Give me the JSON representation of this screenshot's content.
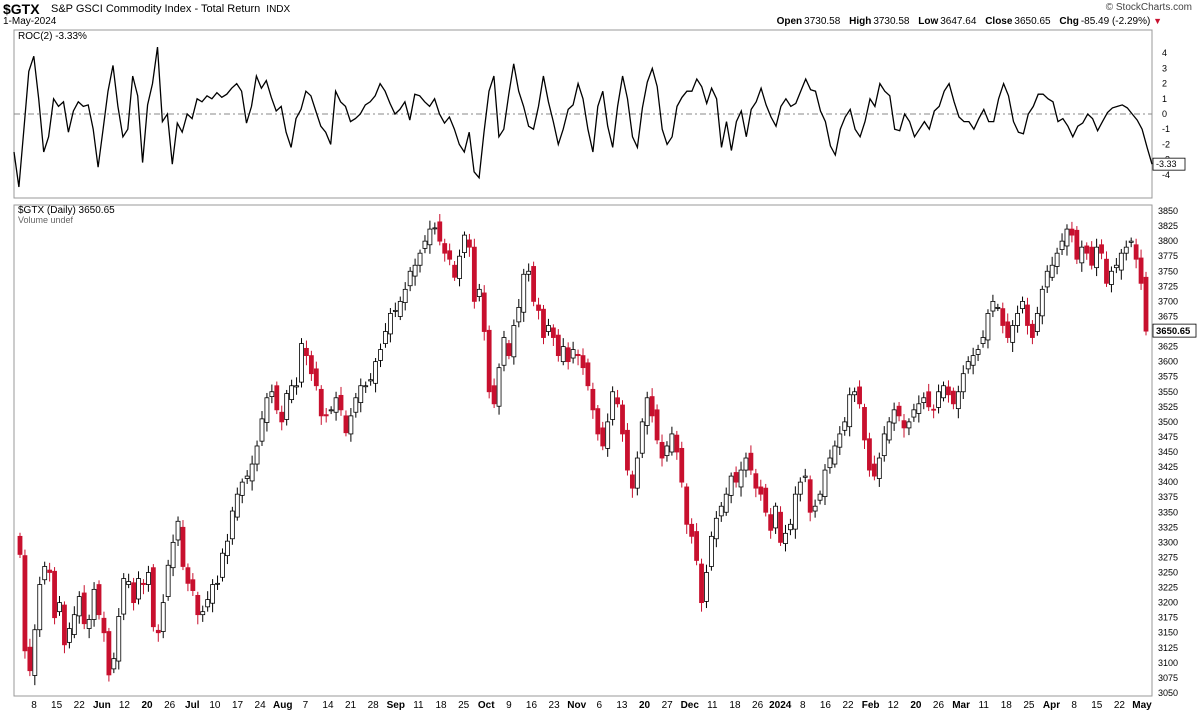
{
  "header": {
    "symbol": "$GTX",
    "name": "S&P GSCI Commodity Index - Total Return",
    "exchange": "INDX",
    "date": "1-May-2024",
    "brand": "© StockCharts.com",
    "open_label": "Open",
    "open": "3730.58",
    "high_label": "High",
    "high": "3730.58",
    "low_label": "Low",
    "low": "3647.64",
    "close_label": "Close",
    "close": "3650.65",
    "chg_label": "Chg",
    "chg": "-85.49 (-2.29%)",
    "chg_icon": "down-triangle-icon"
  },
  "colors": {
    "up": "#000000",
    "down": "#c8102e",
    "grid": "#e6e6e6",
    "roc_line": "#000000"
  },
  "chart_data": [
    {
      "type": "line",
      "legend": "ROC(2) -3.33%",
      "ylim": [
        -5,
        5
      ],
      "yticks": [
        -4,
        -3,
        -2,
        -1,
        0,
        1,
        2,
        3,
        4
      ],
      "last_value_label": "-3.33",
      "series": [
        {
          "name": "ROC(2)",
          "values": [
            -2.5,
            -4.8,
            -1,
            2.8,
            3.8,
            1,
            -2.5,
            -1.5,
            1,
            0.5,
            0.8,
            -1.2,
            0.2,
            0.8,
            0.5,
            0.6,
            -1,
            -3.5,
            -1,
            1.5,
            3.2,
            0.5,
            -1.5,
            -1,
            2.5,
            1.2,
            -3.2,
            0.6,
            2,
            4.4,
            -0.5,
            0,
            -3.3,
            -0.6,
            -1.2,
            0,
            -0.3,
            1,
            0.8,
            1.2,
            1,
            1.4,
            1.1,
            1.3,
            1.7,
            2,
            1.5,
            -0.6,
            0.5,
            2.5,
            1.7,
            2.2,
            1.1,
            0.2,
            0.5,
            -1.2,
            -2.2,
            -0.3,
            0.3,
            1.5,
            1.2,
            0.2,
            -0.8,
            -1.2,
            -2,
            1.5,
            0.8,
            0.5,
            -0.5,
            -0.3,
            0,
            0.6,
            0.8,
            1.2,
            2,
            1.5,
            0.7,
            0,
            0.3,
            0.8,
            -0.4,
            1.3,
            1.2,
            0.8,
            0.5,
            1,
            0,
            -0.6,
            -0.2,
            -1,
            -2,
            -2.5,
            -1.2,
            -3.8,
            -4.2,
            -1.2,
            1.5,
            2.5,
            -1.5,
            -1,
            1.3,
            3.3,
            1.5,
            0.5,
            -0.8,
            -1,
            0.5,
            2.5,
            0.8,
            -0.5,
            -2,
            -1,
            0.3,
            0.6,
            2,
            1,
            -1,
            -2.5,
            0.5,
            1.5,
            -0.8,
            -2.2,
            0.5,
            2.5,
            1,
            -1.5,
            -2.2,
            0.4,
            2.1,
            3,
            1.8,
            -1,
            -2,
            -1.5,
            0.5,
            1.1,
            1.5,
            1.5,
            2.3,
            1.8,
            0.7,
            1.7,
            1,
            -2.2,
            -0.5,
            -2.4,
            -0.5,
            0.2,
            -1.5,
            0.3,
            0.8,
            1.7,
            0.6,
            -0.2,
            -0.8,
            0.5,
            1,
            0.5,
            0.7,
            1.5,
            2.3,
            1.6,
            1.5,
            0.2,
            -0.5,
            -2.1,
            -2.7,
            -1,
            -0.2,
            0.3,
            -1,
            -1.5,
            -0.5,
            1,
            0.5,
            2,
            1.5,
            1.2,
            -1,
            -1.1,
            0,
            -0.5,
            -1.5,
            -1,
            -0.5,
            -1,
            0.2,
            0.5,
            1.5,
            2,
            0.8,
            -0.2,
            -0.5,
            -0.5,
            -1,
            -0.3,
            0.3,
            -0.5,
            -0.5,
            1,
            2,
            1.2,
            -0.5,
            -1.2,
            -1.3,
            0,
            0.5,
            1.3,
            1.3,
            1,
            0.8,
            -0.5,
            -0.3,
            -0.8,
            -1.5,
            -0.8,
            -0.6,
            0,
            -0.3,
            -1.1,
            -0.5,
            0.1,
            0.4,
            0.5,
            0.6,
            0.4,
            0,
            -0.4,
            -1,
            -2.2,
            -3.3
          ]
        }
      ]
    },
    {
      "type": "candlestick",
      "legend": "$GTX (Daily) 3650.65",
      "sublegend": "Volume undef",
      "ylim": [
        3045,
        3860
      ],
      "yticks": [
        3050,
        3075,
        3100,
        3125,
        3150,
        3175,
        3200,
        3225,
        3250,
        3275,
        3300,
        3325,
        3350,
        3375,
        3400,
        3425,
        3450,
        3475,
        3500,
        3525,
        3550,
        3575,
        3600,
        3625,
        3650,
        3675,
        3700,
        3725,
        3750,
        3775,
        3800,
        3825,
        3850
      ],
      "last_value_label": "3650.65",
      "x_labels": [
        "8",
        "15",
        "22",
        "Jun",
        "12",
        "20",
        "26",
        "Jul",
        "10",
        "17",
        "24",
        "Aug",
        "7",
        "14",
        "21",
        "28",
        "Sep",
        "11",
        "18",
        "25",
        "Oct",
        "9",
        "16",
        "23",
        "Nov",
        "6",
        "13",
        "20",
        "27",
        "Dec",
        "11",
        "18",
        "26",
        "2024",
        "8",
        "16",
        "22",
        "Feb",
        "12",
        "20",
        "26",
        "Mar",
        "11",
        "18",
        "25",
        "Apr",
        "8",
        "15",
        "22",
        "May"
      ],
      "closes": [
        3280,
        3120,
        3087,
        3155,
        3230,
        3260,
        3250,
        3175,
        3200,
        3130,
        3157,
        3180,
        3210,
        3165,
        3172,
        3222,
        3180,
        3150,
        3080,
        3107,
        3177,
        3240,
        3235,
        3200,
        3240,
        3230,
        3250,
        3160,
        3150,
        3200,
        3262,
        3300,
        3335,
        3260,
        3232,
        3220,
        3180,
        3185,
        3205,
        3230,
        3232,
        3282,
        3302,
        3352,
        3380,
        3400,
        3410,
        3430,
        3460,
        3505,
        3540,
        3550,
        3520,
        3500,
        3547,
        3560,
        3560,
        3630,
        3610,
        3580,
        3560,
        3510,
        3510,
        3520,
        3540,
        3520,
        3482,
        3510,
        3540,
        3560,
        3560,
        3570,
        3600,
        3620,
        3650,
        3680,
        3685,
        3700,
        3720,
        3750,
        3760,
        3780,
        3800,
        3820,
        3822,
        3800,
        3780,
        3770,
        3740,
        3775,
        3810,
        3790,
        3700,
        3720,
        3650,
        3550,
        3530,
        3590,
        3640,
        3610,
        3660,
        3690,
        3745,
        3750,
        3700,
        3685,
        3640,
        3660,
        3640,
        3610,
        3625,
        3600,
        3620,
        3610,
        3590,
        3560,
        3520,
        3480,
        3460,
        3500,
        3550,
        3530,
        3480,
        3420,
        3390,
        3440,
        3500,
        3540,
        3510,
        3470,
        3440,
        3460,
        3480,
        3450,
        3400,
        3330,
        3310,
        3270,
        3200,
        3250,
        3310,
        3340,
        3360,
        3380,
        3410,
        3400,
        3420,
        3440,
        3420,
        3390,
        3380,
        3350,
        3320,
        3360,
        3300,
        3315,
        3330,
        3380,
        3400,
        3410,
        3350,
        3360,
        3380,
        3420,
        3440,
        3460,
        3480,
        3500,
        3545,
        3550,
        3530,
        3470,
        3420,
        3410,
        3440,
        3480,
        3500,
        3520,
        3510,
        3490,
        3500,
        3520,
        3530,
        3540,
        3525,
        3520,
        3550,
        3560,
        3545,
        3530,
        3550,
        3580,
        3600,
        3610,
        3620,
        3640,
        3680,
        3700,
        3690,
        3660,
        3640,
        3660,
        3680,
        3700,
        3660,
        3640,
        3680,
        3720,
        3750,
        3760,
        3780,
        3800,
        3820,
        3810,
        3770,
        3790,
        3780,
        3760,
        3790,
        3780,
        3730,
        3750,
        3760,
        3780,
        3790,
        3800,
        3770,
        3730,
        3650.65
      ]
    }
  ]
}
